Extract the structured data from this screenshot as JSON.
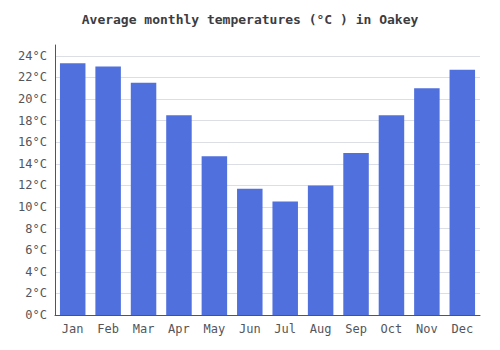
{
  "chart_data": {
    "type": "bar",
    "title": "Average monthly temperatures (°C ) in Oakey",
    "categories": [
      "Jan",
      "Feb",
      "Mar",
      "Apr",
      "May",
      "Jun",
      "Jul",
      "Aug",
      "Sep",
      "Oct",
      "Nov",
      "Dec"
    ],
    "values": [
      23.3,
      23.0,
      21.5,
      18.5,
      14.7,
      11.7,
      10.5,
      12.0,
      15.0,
      18.5,
      21.0,
      22.7
    ],
    "ylim": [
      0,
      25
    ],
    "yticks": [
      {
        "value": 0,
        "label": "0°C"
      },
      {
        "value": 2,
        "label": "2°C"
      },
      {
        "value": 4,
        "label": "4°C"
      },
      {
        "value": 6,
        "label": "6°C"
      },
      {
        "value": 8,
        "label": "8°C"
      },
      {
        "value": 10,
        "label": "10°C"
      },
      {
        "value": 12,
        "label": "12°C"
      },
      {
        "value": 14,
        "label": "14°C"
      },
      {
        "value": 16,
        "label": "16°C"
      },
      {
        "value": 18,
        "label": "18°C"
      },
      {
        "value": 20,
        "label": "20°C"
      },
      {
        "value": 22,
        "label": "22°C"
      },
      {
        "value": 24,
        "label": "24°C"
      }
    ],
    "grid": true
  }
}
